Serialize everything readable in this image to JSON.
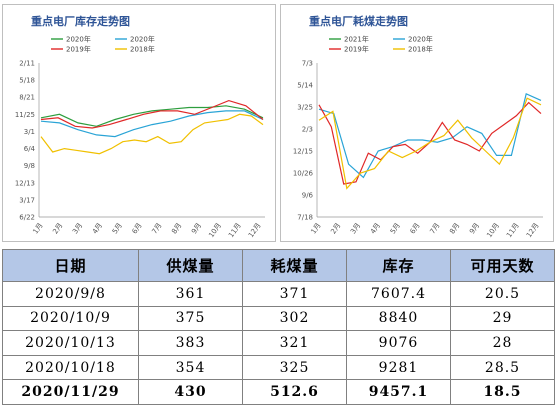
{
  "charts": [
    {
      "title": "重点电厂库存走势图",
      "chart_data": {
        "type": "line",
        "y_ticks": [
          "2/11",
          "5/18",
          "8/21",
          "11/25",
          "3/1",
          "6/4",
          "9/8",
          "12/13",
          "3/17",
          "6/22"
        ],
        "x_ticks": [
          "1月",
          "2月",
          "3月",
          "4月",
          "5月",
          "6月",
          "7月",
          "8月",
          "9月",
          "10月",
          "11月",
          "12月"
        ],
        "series": [
          {
            "name": "2020年",
            "color": "#2e9e3e",
            "values": [
              3.2,
              3.0,
              3.5,
              3.7,
              3.3,
              3.0,
              2.8,
              2.7,
              2.6,
              2.6,
              2.5,
              2.7,
              3.2
            ]
          },
          {
            "name": "2020年",
            "color": "#2aa4d6",
            "values": [
              3.4,
              3.5,
              3.9,
              4.2,
              4.3,
              3.9,
              3.6,
              3.4,
              3.1,
              2.9,
              2.8,
              2.8,
              3.3
            ]
          },
          {
            "name": "2019年",
            "color": "#e02828",
            "values": [
              3.3,
              3.2,
              3.7,
              3.8,
              3.6,
              3.3,
              3.0,
              2.8,
              2.8,
              3.0,
              2.6,
              2.2,
              2.5,
              3.3
            ]
          },
          {
            "name": "2018年",
            "color": "#f0c000",
            "values": [
              4.3,
              5.2,
              5.0,
              5.1,
              5.2,
              5.3,
              5.0,
              4.6,
              4.5,
              4.6,
              4.3,
              4.7,
              4.6,
              3.9,
              3.5,
              3.4,
              3.3,
              3.0,
              3.1,
              3.6
            ]
          }
        ]
      },
      "legend_colors": [
        "#2e9e3e",
        "#2aa4d6",
        "#e02828",
        "#f0c000"
      ]
    },
    {
      "title": "重点电厂耗煤走势图",
      "chart_data": {
        "type": "line",
        "y_ticks": [
          "7/3",
          "5/14",
          "3/25",
          "2/3",
          "12/15",
          "10/26",
          "9/6",
          "7/18"
        ],
        "x_ticks": [
          "1月",
          "2月",
          "3月",
          "4月",
          "5月",
          "6月",
          "7月",
          "8月",
          "9月",
          "10月",
          "11月",
          "12月"
        ],
        "series": [
          {
            "name": "2021年",
            "color": "#2e9e3e",
            "values": []
          },
          {
            "name": "2020年",
            "color": "#2aa4d6",
            "values": [
              2.1,
              2.3,
              4.6,
              5.2,
              4.0,
              3.8,
              3.5,
              3.5,
              3.6,
              3.4,
              2.9,
              3.2,
              4.2,
              4.2,
              1.4,
              1.7
            ]
          },
          {
            "name": "2019年",
            "color": "#e02828",
            "values": [
              1.9,
              2.9,
              5.5,
              5.4,
              4.1,
              4.4,
              3.8,
              3.7,
              4.1,
              3.6,
              2.7,
              3.5,
              3.7,
              4.0,
              3.2,
              2.8,
              2.4,
              1.8,
              2.3
            ]
          },
          {
            "name": "2018年",
            "color": "#f0c000",
            "values": [
              2.6,
              2.2,
              5.7,
              5.0,
              4.8,
              4.0,
              4.3,
              4.0,
              3.6,
              3.3,
              2.6,
              3.4,
              4.0,
              4.6,
              3.4,
              1.6,
              1.9
            ]
          }
        ]
      },
      "legend_colors": [
        "#2e9e3e",
        "#2aa4d6",
        "#e02828",
        "#f0c000"
      ]
    }
  ],
  "table": {
    "headers": [
      "日期",
      "供煤量",
      "耗煤量",
      "库存",
      "可用天数"
    ],
    "rows": [
      {
        "bold": false,
        "cells": [
          "2020/9/8",
          "361",
          "371",
          "7607.4",
          "20.5"
        ]
      },
      {
        "bold": false,
        "cells": [
          "2020/10/9",
          "375",
          "302",
          "8840",
          "29"
        ]
      },
      {
        "bold": false,
        "cells": [
          "2020/10/13",
          "383",
          "321",
          "9076",
          "28"
        ]
      },
      {
        "bold": false,
        "cells": [
          "2020/10/18",
          "354",
          "325",
          "9281",
          "28.5"
        ]
      },
      {
        "bold": true,
        "cells": [
          "2020/11/29",
          "430",
          "512.6",
          "9457.1",
          "18.5"
        ]
      }
    ]
  }
}
